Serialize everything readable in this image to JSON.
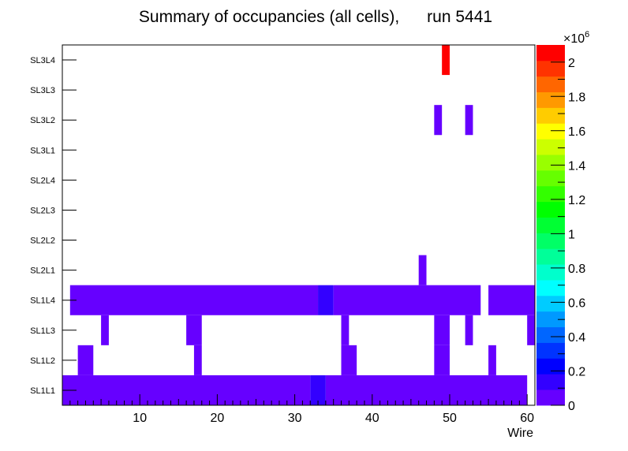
{
  "chart_data": {
    "type": "heatmap",
    "title": "Summary of occupancies (all cells),      run 5441",
    "xlabel": "Wire",
    "ylabel": "",
    "x_range": [
      0,
      61
    ],
    "x_ticks": [
      10,
      20,
      30,
      40,
      50,
      60
    ],
    "y_categories": [
      "SL1L1",
      "SL1L2",
      "SL1L3",
      "SL1L4",
      "SL2L1",
      "SL2L2",
      "SL2L3",
      "SL2L4",
      "SL3L1",
      "SL3L2",
      "SL3L3",
      "SL3L4"
    ],
    "z_range": [
      0,
      2100000
    ],
    "z_exponent_label": "×10",
    "z_exponent_power": "6",
    "z_ticks": [
      {
        "value": 0,
        "label": "0"
      },
      {
        "value": 0.2,
        "label": "0.2"
      },
      {
        "value": 0.4,
        "label": "0.4"
      },
      {
        "value": 0.6,
        "label": "0.6"
      },
      {
        "value": 0.8,
        "label": "0.8"
      },
      {
        "value": 1.0,
        "label": "1"
      },
      {
        "value": 1.2,
        "label": "1.2"
      },
      {
        "value": 1.4,
        "label": "1.4"
      },
      {
        "value": 1.6,
        "label": "1.6"
      },
      {
        "value": 1.8,
        "label": "1.8"
      },
      {
        "value": 2.0,
        "label": "2"
      }
    ],
    "palette": [
      "#6600ff",
      "#3300ff",
      "#0000ff",
      "#0033ff",
      "#0066ff",
      "#0099ff",
      "#00ccff",
      "#00ffff",
      "#00ffcc",
      "#00ff99",
      "#00ff66",
      "#00ff33",
      "#00ff00",
      "#33ff00",
      "#66ff00",
      "#99ff00",
      "#ccff00",
      "#ffff00",
      "#ffcc00",
      "#ff9900",
      "#ff6600",
      "#ff3300",
      "#ff0000"
    ],
    "cells": [
      {
        "layer": "SL1L1",
        "x0": 0,
        "x1": 32,
        "value": 50000
      },
      {
        "layer": "SL1L1",
        "x0": 32,
        "x1": 34,
        "value": 130000
      },
      {
        "layer": "SL1L1",
        "x0": 34,
        "x1": 60,
        "value": 50000
      },
      {
        "layer": "SL1L2",
        "x0": 2,
        "x1": 4,
        "value": 50000
      },
      {
        "layer": "SL1L2",
        "x0": 17,
        "x1": 18,
        "value": 50000
      },
      {
        "layer": "SL1L2",
        "x0": 36,
        "x1": 38,
        "value": 50000
      },
      {
        "layer": "SL1L2",
        "x0": 48,
        "x1": 50,
        "value": 50000
      },
      {
        "layer": "SL1L2",
        "x0": 55,
        "x1": 56,
        "value": 50000
      },
      {
        "layer": "SL1L3",
        "x0": 5,
        "x1": 6,
        "value": 50000
      },
      {
        "layer": "SL1L3",
        "x0": 16,
        "x1": 18,
        "value": 50000
      },
      {
        "layer": "SL1L3",
        "x0": 36,
        "x1": 37,
        "value": 50000
      },
      {
        "layer": "SL1L3",
        "x0": 48,
        "x1": 50,
        "value": 50000
      },
      {
        "layer": "SL1L3",
        "x0": 52,
        "x1": 53,
        "value": 50000
      },
      {
        "layer": "SL1L3",
        "x0": 60,
        "x1": 61,
        "value": 50000
      },
      {
        "layer": "SL1L4",
        "x0": 1,
        "x1": 33,
        "value": 50000
      },
      {
        "layer": "SL1L4",
        "x0": 33,
        "x1": 35,
        "value": 130000
      },
      {
        "layer": "SL1L4",
        "x0": 35,
        "x1": 54,
        "value": 50000
      },
      {
        "layer": "SL1L4",
        "x0": 55,
        "x1": 61,
        "value": 50000
      },
      {
        "layer": "SL2L1",
        "x0": 46,
        "x1": 47,
        "value": 50000
      },
      {
        "layer": "SL3L2",
        "x0": 48,
        "x1": 49,
        "value": 50000
      },
      {
        "layer": "SL3L2",
        "x0": 52,
        "x1": 53,
        "value": 50000
      },
      {
        "layer": "SL3L4",
        "x0": 49,
        "x1": 50,
        "value": 2050000
      }
    ]
  }
}
